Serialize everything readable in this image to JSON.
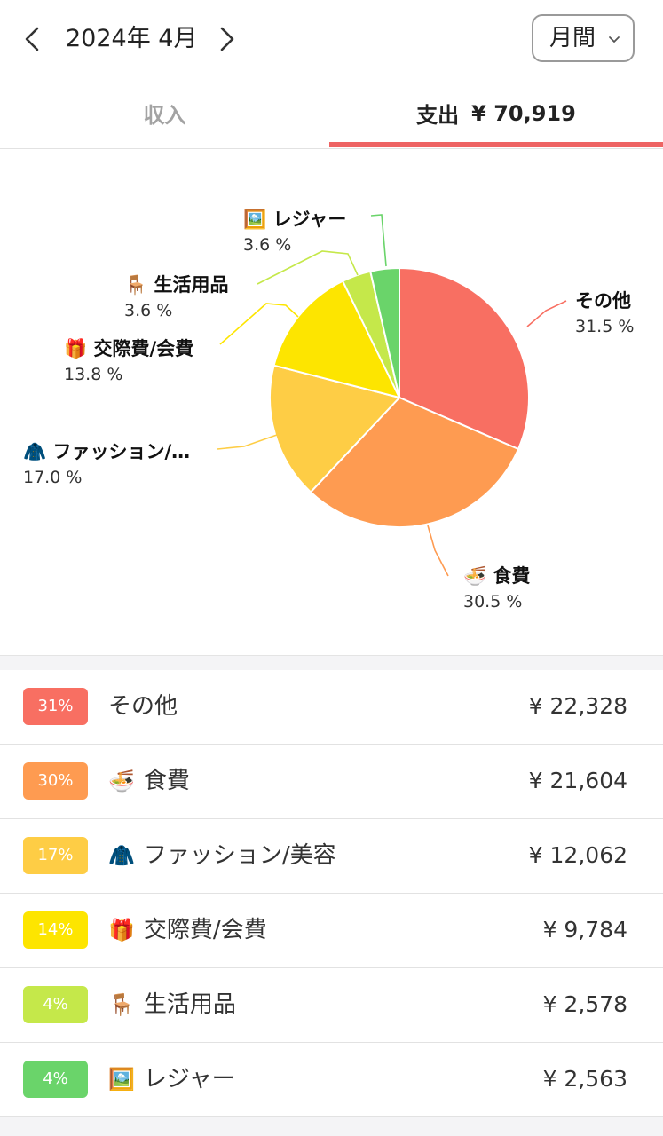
{
  "header": {
    "month_label": "2024年 4月",
    "period_label": "月間"
  },
  "tabs": {
    "income_label": "収入",
    "expense_label": "支出",
    "expense_total": "¥ 70,919",
    "active": "expense",
    "accent_color": "#ee6363"
  },
  "chart_data": {
    "type": "pie",
    "unit": "%",
    "slices": [
      {
        "name": "その他",
        "icon": "",
        "value": 31.5,
        "label": "31.5 %",
        "color": "#f86f62"
      },
      {
        "name": "食費",
        "icon": "🍜",
        "value": 30.5,
        "label": "30.5 %",
        "color": "#fe9b51"
      },
      {
        "name": "ファッション/…",
        "icon": "🧥",
        "value": 17.0,
        "label": "17.0 %",
        "color": "#fecd45"
      },
      {
        "name": "交際費/会費",
        "icon": "🎁",
        "value": 13.8,
        "label": "13.8 %",
        "color": "#fde500"
      },
      {
        "name": "生活用品",
        "icon": "🪑",
        "value": 3.6,
        "label": "3.6 %",
        "color": "#c5e84a"
      },
      {
        "name": "レジャー",
        "icon": "🖼️",
        "value": 3.6,
        "label": "3.6 %",
        "color": "#6ad46a"
      }
    ]
  },
  "list": [
    {
      "percent": "31%",
      "icon": "",
      "name": "その他",
      "amount": "¥ 22,328",
      "color": "#f86f62"
    },
    {
      "percent": "30%",
      "icon": "🍜",
      "name": "食費",
      "amount": "¥ 21,604",
      "color": "#fe9b51"
    },
    {
      "percent": "17%",
      "icon": "🧥",
      "name": "ファッション/美容",
      "amount": "¥ 12,062",
      "color": "#fecd45"
    },
    {
      "percent": "14%",
      "icon": "🎁",
      "name": "交際費/会費",
      "amount": "¥ 9,784",
      "color": "#fde500"
    },
    {
      "percent": "4%",
      "icon": "🪑",
      "name": "生活用品",
      "amount": "¥ 2,578",
      "color": "#c5e84a"
    },
    {
      "percent": "4%",
      "icon": "🖼️",
      "name": "レジャー",
      "amount": "¥ 2,563",
      "color": "#6ad46a"
    }
  ]
}
